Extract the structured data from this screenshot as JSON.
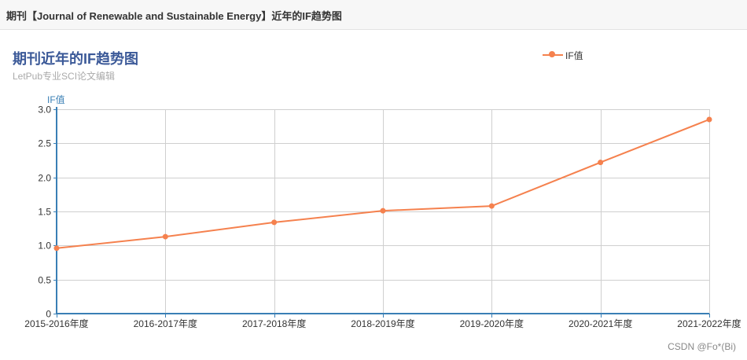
{
  "page": {
    "header_title": "期刊【Journal of Renewable and Sustainable Energy】近年的IF趋势图",
    "watermark": "CSDN @Fo*(Bi)"
  },
  "chart_data": {
    "type": "line",
    "title": "期刊近年的IF趋势图",
    "subtitle": "LetPub专业SCI论文编辑",
    "ylabel": "IF值",
    "xlabel": "",
    "legend": "top-right",
    "grid": true,
    "categories": [
      "2015-2016年度",
      "2016-2017年度",
      "2017-2018年度",
      "2018-2019年度",
      "2019-2020年度",
      "2020-2021年度",
      "2021-2022年度"
    ],
    "yticks": [
      "0",
      "0.5",
      "1.0",
      "1.5",
      "2.0",
      "2.5",
      "3.0"
    ],
    "ylim": [
      0,
      3
    ],
    "series": [
      {
        "name": "IF值",
        "color": "#f5814e",
        "values": [
          0.96,
          1.13,
          1.34,
          1.51,
          1.58,
          2.22,
          2.85
        ]
      }
    ]
  }
}
